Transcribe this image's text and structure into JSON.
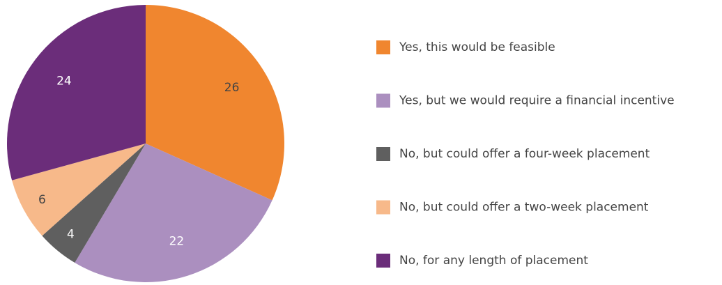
{
  "chart_data": {
    "type": "pie",
    "categories": [
      "Yes, this would be feasible",
      "Yes, but we would require a financial incentive",
      "No, but could offer a four-week placement",
      "No, but could offer a two-week placement",
      "No, for any length of placement"
    ],
    "values": [
      26,
      22,
      4,
      6,
      24
    ],
    "colors": [
      "#f0862f",
      "#ab8fbf",
      "#5f5f5f",
      "#f7b98a",
      "#6b2d7a"
    ],
    "label_colors": [
      "#444444",
      "#ffffff",
      "#ffffff",
      "#444444",
      "#ffffff"
    ],
    "legend": "right"
  }
}
